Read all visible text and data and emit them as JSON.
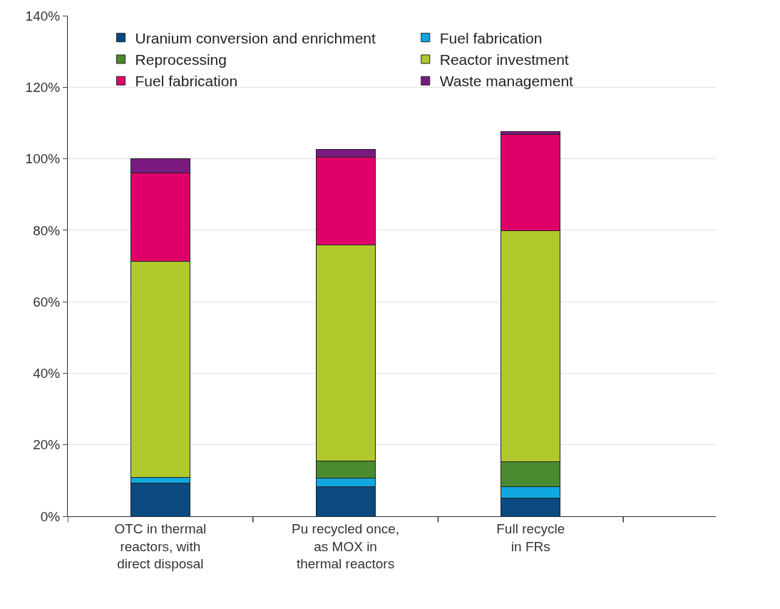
{
  "chart_data": {
    "type": "bar",
    "stacked": true,
    "categories": [
      "OTC in thermal\nreactors, with\ndirect disposal",
      "Pu recycled once,\nas MOX in\nthermal reactors",
      "Full recycle\nin FRs"
    ],
    "series": [
      {
        "name": "Uranium conversion and enrichment",
        "color": "#0a4a80",
        "values": [
          9.3,
          8.3,
          5.1
        ]
      },
      {
        "name": "Fuel fabrication",
        "color": "#10a8e0",
        "values": [
          1.6,
          2.4,
          3.2
        ]
      },
      {
        "name": "Reprocessing",
        "color": "#4a8a30",
        "values": [
          0,
          4.7,
          6.9
        ]
      },
      {
        "name": "Reactor investment",
        "color": "#b0c82c",
        "values": [
          60.4,
          60.4,
          64.7
        ]
      },
      {
        "name": "Fuel fabrication",
        "color": "#e0006a",
        "values": [
          24.8,
          24.7,
          26.8
        ]
      },
      {
        "name": "Waste management",
        "color": "#7a1a80",
        "values": [
          3.9,
          2.1,
          0.9
        ]
      }
    ],
    "ylim": [
      0,
      140
    ],
    "yticks": [
      {
        "value": 0,
        "label": "0%"
      },
      {
        "value": 20,
        "label": "20%"
      },
      {
        "value": 40,
        "label": "40%"
      },
      {
        "value": 60,
        "label": "60%"
      },
      {
        "value": 80,
        "label": "80%"
      },
      {
        "value": 100,
        "label": "100%"
      },
      {
        "value": 120,
        "label": "120%"
      },
      {
        "value": 140,
        "label": "140%"
      }
    ],
    "grid": "y",
    "legend": "top"
  }
}
